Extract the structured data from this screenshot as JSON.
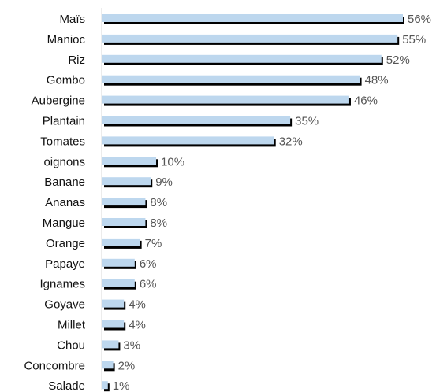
{
  "chart_data": {
    "type": "bar",
    "orientation": "horizontal",
    "categories": [
      "Maïs",
      "Manioc",
      "Riz",
      "Gombo",
      "Aubergine",
      "Plantain",
      "Tomates",
      "oignons",
      "Banane",
      "Ananas",
      "Mangue",
      "Orange",
      "Papaye",
      "Ignames",
      "Goyave",
      "Millet",
      "Chou",
      "Concombre",
      "Salade"
    ],
    "values": [
      56,
      55,
      52,
      48,
      46,
      35,
      32,
      10,
      9,
      8,
      8,
      7,
      6,
      6,
      4,
      4,
      3,
      2,
      1
    ],
    "value_labels": [
      "56%",
      "55%",
      "52%",
      "48%",
      "46%",
      "35%",
      "32%",
      "10%",
      "9%",
      "8%",
      "8%",
      "7%",
      "6%",
      "6%",
      "4%",
      "4%",
      "3%",
      "2%",
      "1%"
    ],
    "unit": "%",
    "xlim": [
      0,
      56
    ],
    "grid": false,
    "legend": "none",
    "colors": {
      "bar": "#bdd7ee",
      "shadow": "#000000",
      "axis": "#d9d9d9",
      "category_text": "#111111",
      "value_text": "#555555"
    }
  }
}
